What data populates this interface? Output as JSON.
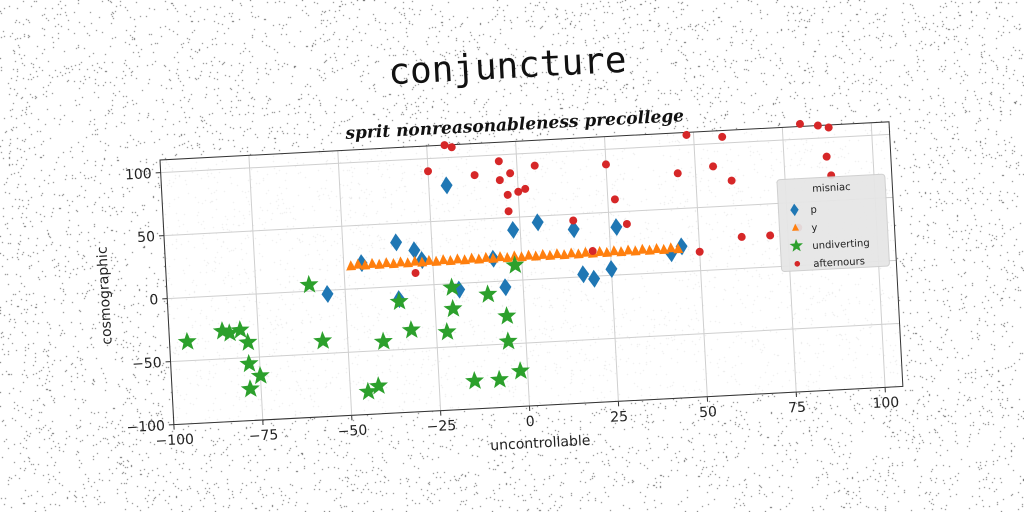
{
  "chart_data": {
    "type": "scatter",
    "title": "conjuncture",
    "subtitle": "sprit nonreasonableness precollege",
    "xlabel": "uncontrollable",
    "ylabel": "cosmographic",
    "xlim": [
      -100,
      105
    ],
    "ylim": [
      -100,
      110
    ],
    "xticks": [
      "−100",
      "−75",
      "−50",
      "−25",
      "0",
      "25",
      "50",
      "75",
      "100"
    ],
    "yticks": [
      "−100",
      "−50",
      "0",
      "50",
      "100"
    ],
    "grid": true,
    "legend": {
      "title": "misniac",
      "position": "right"
    },
    "series": [
      {
        "name": "p",
        "marker": "diamond",
        "color": "#1f77b4",
        "points": [
          [
            -55,
            -3
          ],
          [
            -45,
            20
          ],
          [
            -35,
            35
          ],
          [
            -35,
            -10
          ],
          [
            -30,
            28
          ],
          [
            -28,
            20
          ],
          [
            -20,
            78
          ],
          [
            -18,
            -5
          ],
          [
            -8,
            18
          ],
          [
            -5,
            -5
          ],
          [
            -2,
            40
          ],
          [
            5,
            45
          ],
          [
            15,
            38
          ],
          [
            17,
            2
          ],
          [
            20,
            -2
          ],
          [
            25,
            5
          ],
          [
            27,
            38
          ],
          [
            42,
            15
          ],
          [
            45,
            20
          ]
        ]
      },
      {
        "name": "y",
        "marker": "triangle",
        "color": "#ff7f0e",
        "points": [
          [
            -48,
            18
          ],
          [
            -46,
            19
          ],
          [
            -44,
            18
          ],
          [
            -42,
            19
          ],
          [
            -40,
            18
          ],
          [
            -38,
            19
          ],
          [
            -36,
            18
          ],
          [
            -34,
            19
          ],
          [
            -32,
            18
          ],
          [
            -30,
            19
          ],
          [
            -28,
            18
          ],
          [
            -26,
            19
          ],
          [
            -24,
            18
          ],
          [
            -22,
            19
          ],
          [
            -20,
            18
          ],
          [
            -18,
            19
          ],
          [
            -16,
            18
          ],
          [
            -14,
            19
          ],
          [
            -12,
            18
          ],
          [
            -10,
            19
          ],
          [
            -8,
            18
          ],
          [
            -6,
            19
          ],
          [
            -4,
            18
          ],
          [
            -2,
            19
          ],
          [
            0,
            18
          ],
          [
            2,
            19
          ],
          [
            4,
            18
          ],
          [
            6,
            19
          ],
          [
            8,
            18
          ],
          [
            10,
            19
          ],
          [
            12,
            18
          ],
          [
            14,
            19
          ],
          [
            16,
            18
          ],
          [
            18,
            19
          ],
          [
            20,
            18
          ],
          [
            22,
            19
          ],
          [
            24,
            18
          ],
          [
            26,
            19
          ],
          [
            28,
            18
          ],
          [
            30,
            19
          ],
          [
            32,
            18
          ],
          [
            34,
            19
          ],
          [
            36,
            18
          ],
          [
            38,
            19
          ],
          [
            40,
            18
          ],
          [
            42,
            19
          ],
          [
            44,
            18
          ]
        ]
      },
      {
        "name": "undiverting",
        "marker": "star",
        "color": "#2ca02c",
        "points": [
          [
            -95,
            -35
          ],
          [
            -85,
            -28
          ],
          [
            -83,
            -30
          ],
          [
            -80,
            -28
          ],
          [
            -78,
            -38
          ],
          [
            -78,
            -55
          ],
          [
            -78,
            -75
          ],
          [
            -75,
            -65
          ],
          [
            -60,
            5
          ],
          [
            -57,
            -40
          ],
          [
            -45,
            -82
          ],
          [
            -42,
            -78
          ],
          [
            -40,
            -43
          ],
          [
            -35,
            -12
          ],
          [
            -32,
            -35
          ],
          [
            -22,
            -38
          ],
          [
            -20,
            -3
          ],
          [
            -20,
            -20
          ],
          [
            -15,
            -78
          ],
          [
            -10,
            -10
          ],
          [
            -8,
            -78
          ],
          [
            -5,
            -28
          ],
          [
            -5,
            -48
          ],
          [
            -2,
            -72
          ],
          [
            -2,
            12
          ]
        ]
      },
      {
        "name": "afternours",
        "marker": "circle",
        "color": "#d62728",
        "points": [
          [
            -30,
            10
          ],
          [
            -25,
            90
          ],
          [
            -20,
            110
          ],
          [
            -18,
            108
          ],
          [
            -12,
            85
          ],
          [
            -5,
            95
          ],
          [
            -5,
            80
          ],
          [
            -3,
            68
          ],
          [
            -3,
            55
          ],
          [
            -2,
            85
          ],
          [
            0,
            70
          ],
          [
            2,
            72
          ],
          [
            5,
            90
          ],
          [
            15,
            45
          ],
          [
            20,
            20
          ],
          [
            25,
            88
          ],
          [
            27,
            60
          ],
          [
            30,
            40
          ],
          [
            45,
            78
          ],
          [
            48,
            108
          ],
          [
            50,
            15
          ],
          [
            55,
            82
          ],
          [
            58,
            105
          ],
          [
            60,
            70
          ],
          [
            62,
            25
          ],
          [
            70,
            25
          ],
          [
            78,
            30
          ],
          [
            80,
            112
          ],
          [
            85,
            110
          ],
          [
            87,
            85
          ],
          [
            88,
            70
          ],
          [
            88,
            108
          ]
        ]
      }
    ]
  }
}
